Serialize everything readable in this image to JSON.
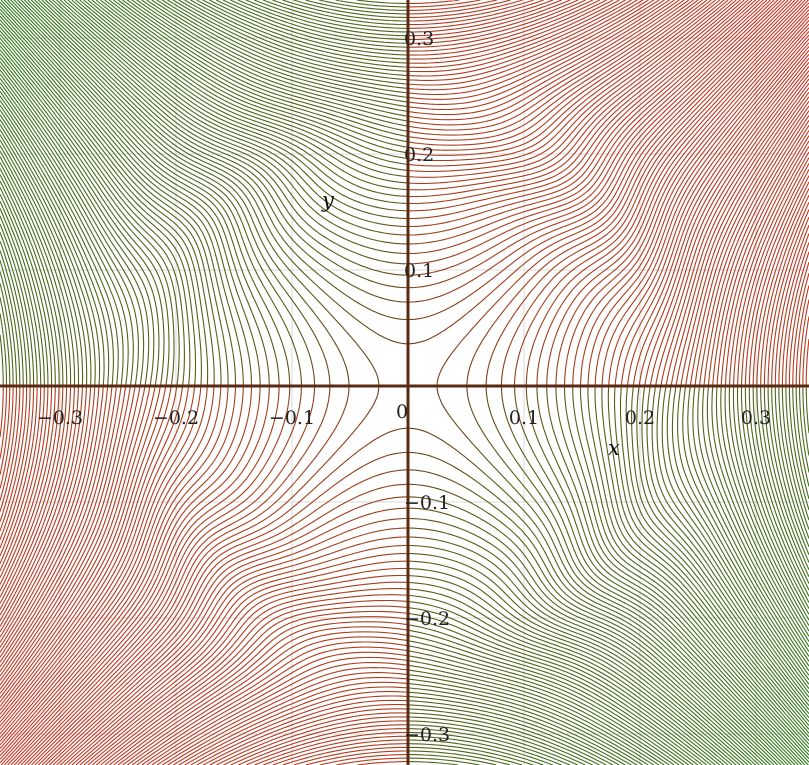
{
  "chart_data": {
    "type": "contour",
    "title": "",
    "xlabel": "x",
    "ylabel": "y",
    "xlim": [
      -0.345,
      0.345
    ],
    "ylim": [
      -0.335,
      0.335
    ],
    "xticks": [
      -0.3,
      -0.2,
      -0.1,
      0.1,
      0.2,
      0.3
    ],
    "yticks": [
      -0.3,
      -0.2,
      -0.1,
      0.1,
      0.2,
      0.3
    ],
    "xtick_labels": [
      "−0.3",
      "−0.2",
      "−0.1",
      "0.1",
      "0.2",
      "0.3"
    ],
    "ytick_labels": [
      "−0.3",
      "−0.2",
      "−0.1",
      "0.1",
      "0.2",
      "0.3"
    ],
    "origin_label": "0",
    "grid": true,
    "contour_levels": 120,
    "colormap": [
      "#2e7d1a",
      "#d62a1e"
    ],
    "axis_color": "#5a2a12"
  }
}
